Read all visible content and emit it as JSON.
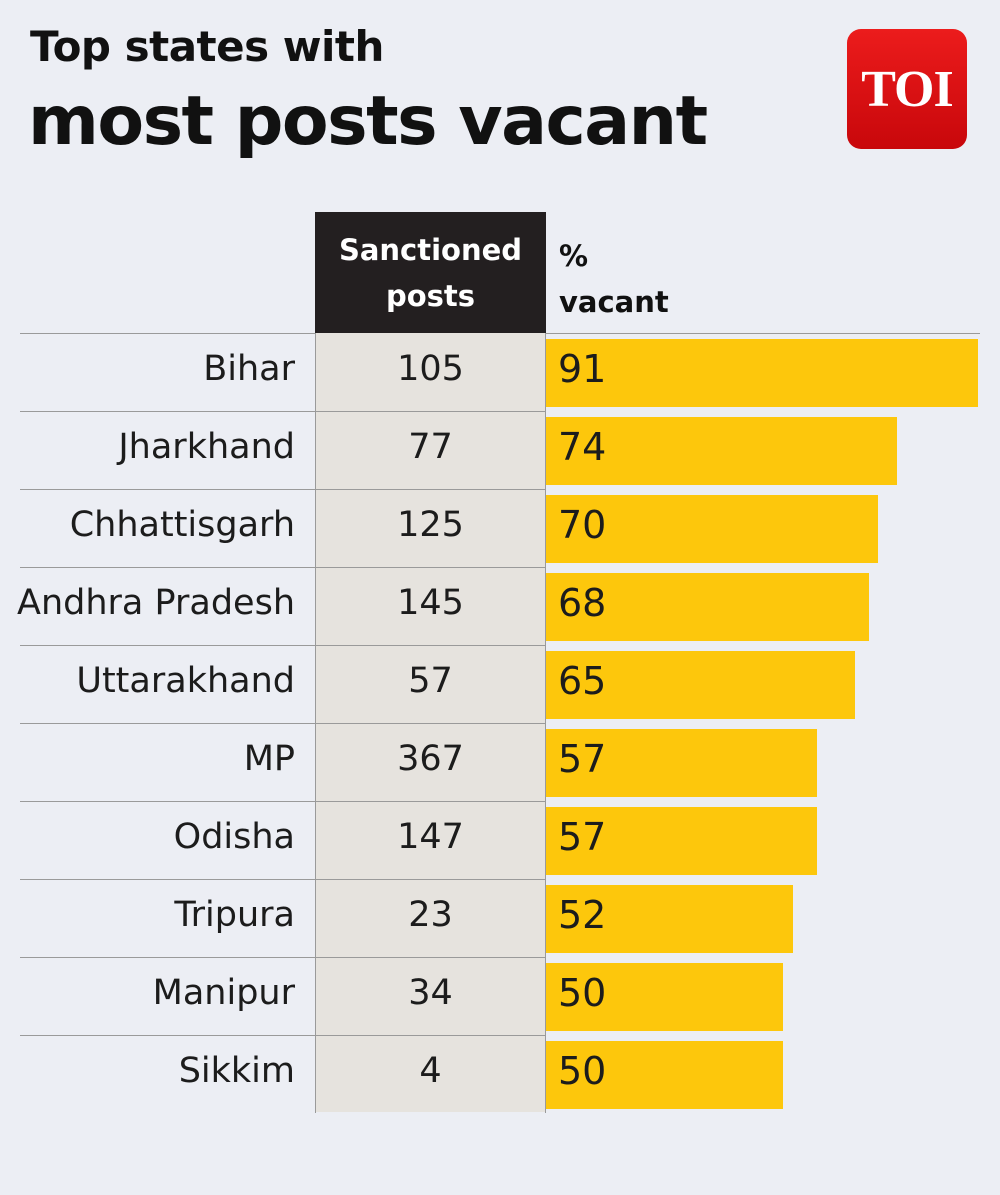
{
  "header": {
    "title_line1": "Top states with",
    "title_line2": "most posts vacant",
    "logo_text": "TOI"
  },
  "columns": {
    "posts_header_line1": "Sanctioned",
    "posts_header_line2": "posts",
    "vacant_header_line1": "%",
    "vacant_header_line2": "vacant"
  },
  "colors": {
    "bar": "#fdc70c",
    "logo": "#e31212",
    "header_dark": "#231f20",
    "posts_column": "#e6e3de",
    "background": "#eceef4"
  },
  "chart_data": {
    "type": "bar",
    "orientation": "horizontal",
    "categories": [
      "Bihar",
      "Jharkhand",
      "Chhattisgarh",
      "Andhra Pradesh",
      "Uttarakhand",
      "MP",
      "Odisha",
      "Tripura",
      "Manipur",
      "Sikkim"
    ],
    "series": [
      {
        "name": "% vacant",
        "values": [
          91,
          74,
          70,
          68,
          65,
          57,
          57,
          52,
          50,
          50
        ]
      }
    ],
    "sanctioned_posts": [
      105,
      77,
      125,
      145,
      57,
      367,
      147,
      23,
      34,
      4
    ],
    "xlim": [
      0,
      91
    ]
  }
}
